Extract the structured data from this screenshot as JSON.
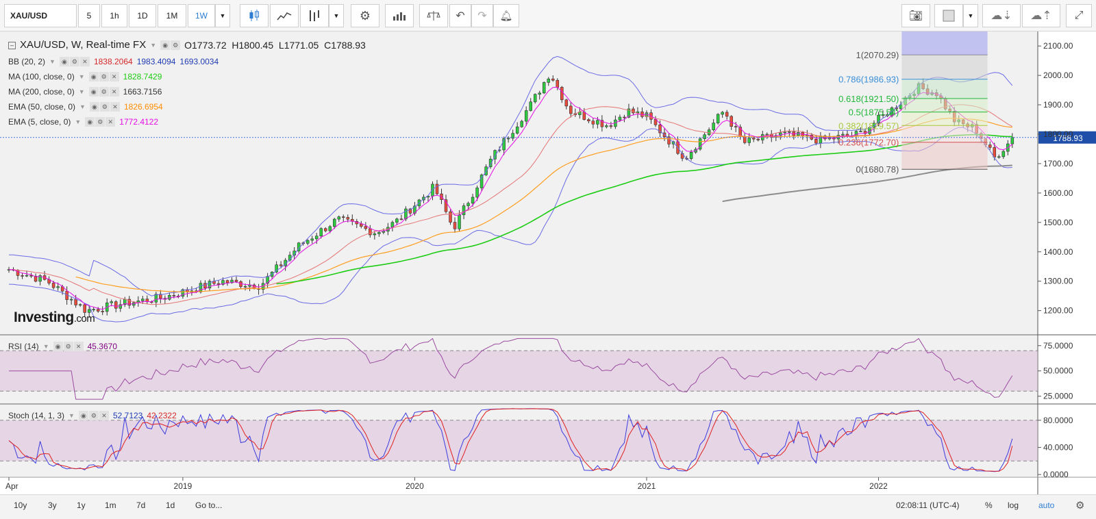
{
  "toolbar": {
    "symbol": "XAU/USD",
    "intervals": [
      "5",
      "1h",
      "1D",
      "1M",
      "1W"
    ],
    "active_interval": "1W"
  },
  "main_legend": {
    "title": "XAU/USD, W, Real-time FX",
    "open": "O1773.72",
    "high": "H1800.45",
    "low": "L1771.05",
    "close": "C1788.93"
  },
  "indicators": [
    {
      "name": "BB (20, 2)",
      "values": [
        "1838.2064",
        "1983.4094",
        "1693.0034"
      ]
    },
    {
      "name": "MA (100, close, 0)",
      "values": [
        "1828.7429"
      ]
    },
    {
      "name": "MA (200, close, 0)",
      "values": [
        "1663.7156"
      ]
    },
    {
      "name": "EMA (50, close, 0)",
      "values": [
        "1826.6954"
      ]
    },
    {
      "name": "EMA (5, close, 0)",
      "values": [
        "1772.4122"
      ]
    }
  ],
  "rsi_legend": {
    "name": "RSI (14)",
    "value": "45.3670"
  },
  "stoch_legend": {
    "name": "Stoch (14, 1, 3)",
    "k": "52.7123",
    "d": "42.2322"
  },
  "brand": "Investing",
  "brand_suffix": ".com",
  "last_price_label": "1788.93",
  "fib_labels": [
    "1(2070.29)",
    "0.786(1986.93)",
    "0.618(1921.50)",
    "0.5(1875.54)",
    "0.382(1829.57)",
    "0.236(1772.70)",
    "0(1680.78)"
  ],
  "bottom": {
    "ranges": [
      "10y",
      "3y",
      "1y",
      "1m",
      "7d",
      "1d"
    ],
    "goto": "Go to...",
    "clock": "02:08:11 (UTC-4)",
    "percent": "%",
    "log": "log",
    "auto": "auto"
  },
  "colors": {
    "up": "#2ecc40",
    "down": "#e84c3d",
    "bb": "#6a6ae6",
    "ma100": "#1dcc14",
    "ma200": "#8c8c8c",
    "ema50": "#ff9d1e",
    "ema5": "#e60ce6",
    "bb_mid": "#e57373",
    "rsi": "#9b4ba0",
    "stoch_k": "#3b3bde",
    "stoch_d": "#e02020"
  },
  "chart_data": [
    {
      "type": "candlestick",
      "title": "XAU/USD, W, Real-time FX",
      "x_tick_labels": [
        "Apr",
        "2019",
        "2020",
        "2021",
        "2022"
      ],
      "x_range": [
        "2018-04",
        "2022-08"
      ],
      "y_ticks": [
        1200,
        1300,
        1400,
        1500,
        1600,
        1700,
        1800,
        1900,
        2000,
        2100
      ],
      "ylim": [
        1120,
        2140
      ],
      "grid": false,
      "last_price": 1788.93,
      "approx_path": [
        [
          "2018-04",
          1340
        ],
        [
          "2018-06",
          1300
        ],
        [
          "2018-08",
          1200
        ],
        [
          "2018-10",
          1225
        ],
        [
          "2018-12",
          1245
        ],
        [
          "2019-03",
          1300
        ],
        [
          "2019-05",
          1285
        ],
        [
          "2019-07",
          1420
        ],
        [
          "2019-09",
          1510
        ],
        [
          "2019-11",
          1465
        ],
        [
          "2019-12",
          1500
        ],
        [
          "2020-02",
          1620
        ],
        [
          "2020-03",
          1480
        ],
        [
          "2020-05",
          1720
        ],
        [
          "2020-07",
          1900
        ],
        [
          "2020-08",
          2010
        ],
        [
          "2020-09",
          1880
        ],
        [
          "2020-11",
          1830
        ],
        [
          "2020-12",
          1880
        ],
        [
          "2021-01",
          1860
        ],
        [
          "2021-03",
          1720
        ],
        [
          "2021-05",
          1880
        ],
        [
          "2021-06",
          1770
        ],
        [
          "2021-08",
          1800
        ],
        [
          "2021-10",
          1780
        ],
        [
          "2021-12",
          1800
        ],
        [
          "2022-02",
          1900
        ],
        [
          "2022-03",
          1960
        ],
        [
          "2022-04",
          1940
        ],
        [
          "2022-05",
          1840
        ],
        [
          "2022-06",
          1820
        ],
        [
          "2022-07",
          1720
        ],
        [
          "2022-08",
          1788.93
        ]
      ],
      "fibonacci": {
        "high": 2070.29,
        "low": 1680.78,
        "levels": [
          1,
          0.786,
          0.618,
          0.5,
          0.382,
          0.236,
          0
        ]
      }
    },
    {
      "type": "line",
      "name": "RSI (14)",
      "y_ticks": [
        25,
        50,
        75
      ],
      "ylim": [
        18,
        85
      ],
      "bands": [
        30,
        70
      ],
      "last_value": 45.367
    },
    {
      "type": "line",
      "name": "Stoch (14, 1, 3)",
      "y_ticks": [
        0,
        40,
        80
      ],
      "ylim": [
        -3,
        103
      ],
      "bands": [
        20,
        80
      ],
      "last_values": {
        "k": 52.7123,
        "d": 42.2322
      }
    }
  ]
}
